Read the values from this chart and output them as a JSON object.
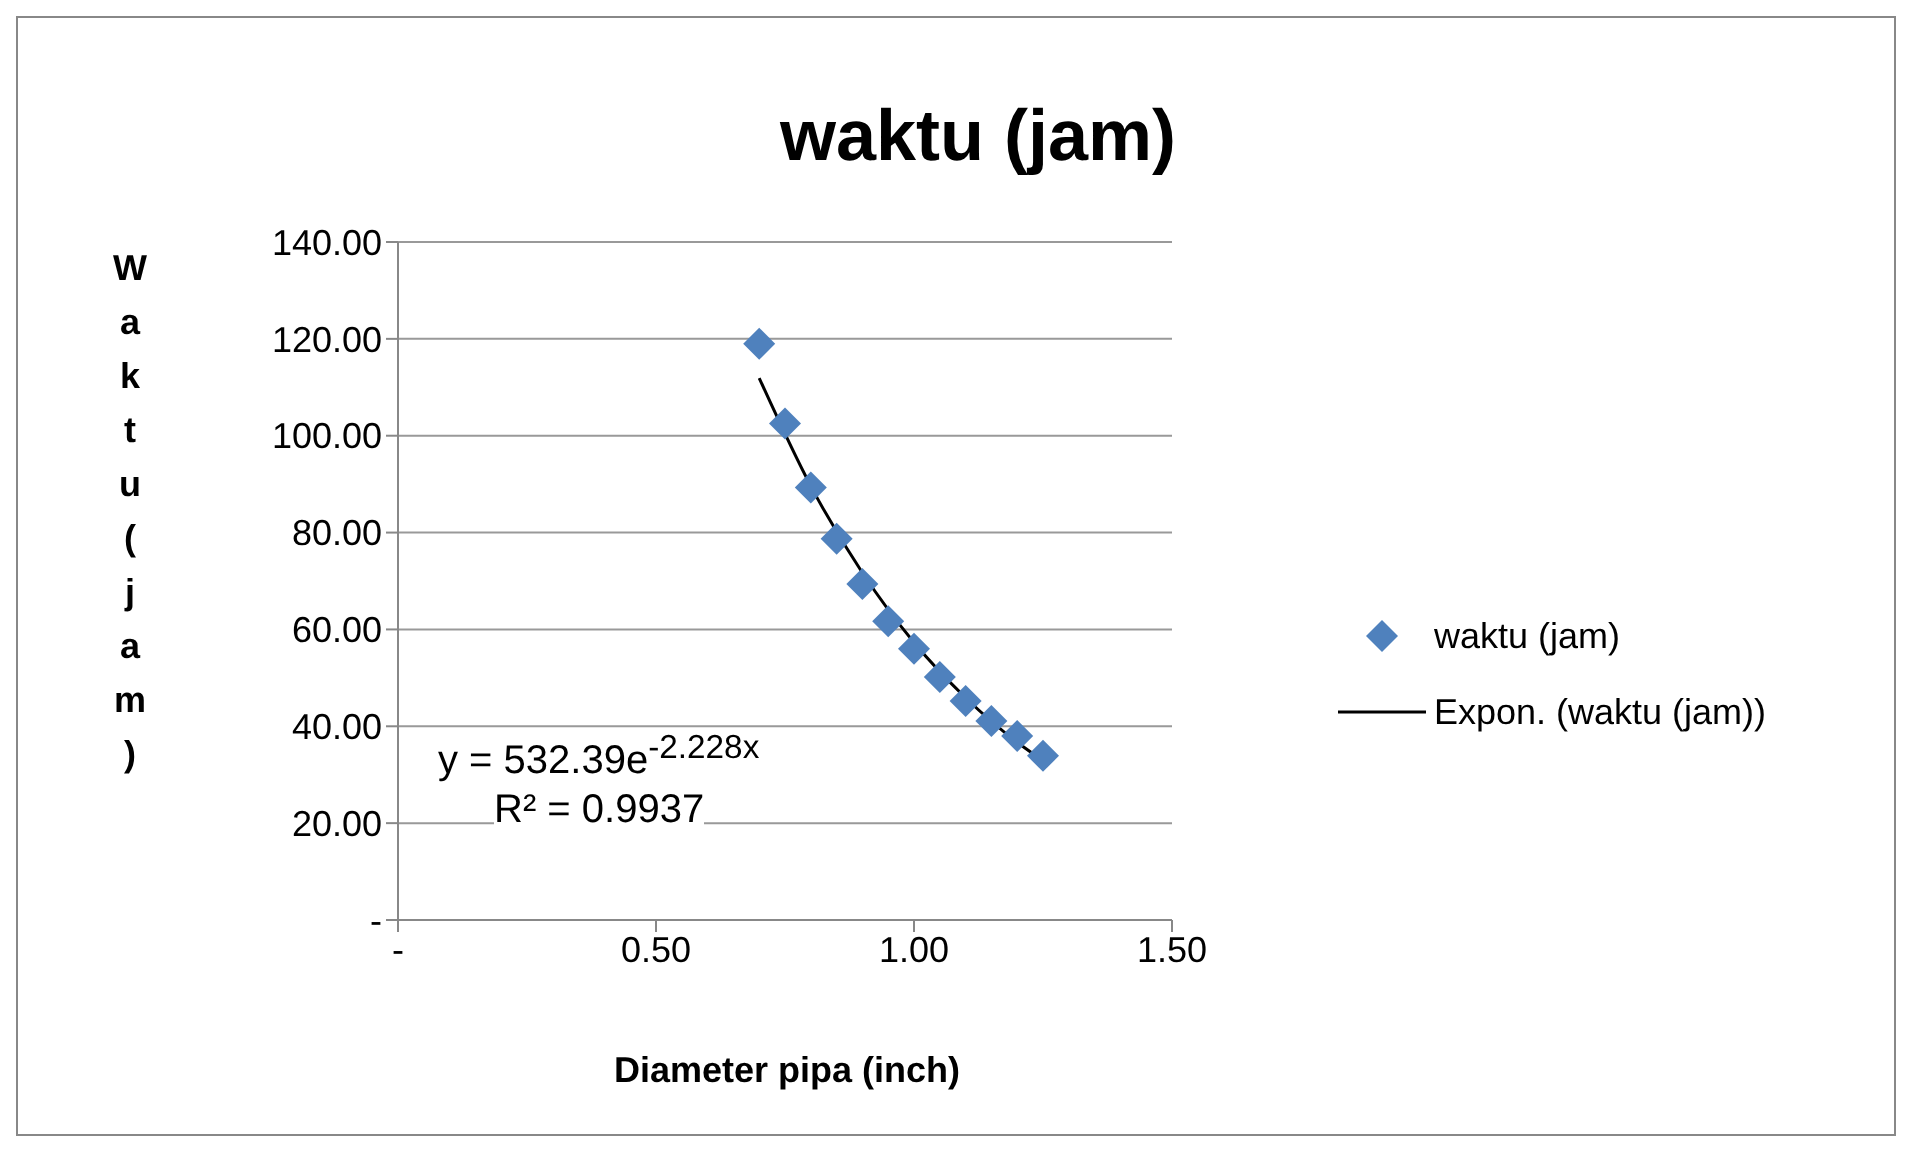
{
  "chart_data": {
    "type": "scatter",
    "title": "waktu (jam)",
    "xlabel": "Diameter pipa (inch)",
    "ylabel": "Waktu (jam)",
    "x": [
      0.7,
      0.75,
      0.8,
      0.85,
      0.9,
      0.95,
      1.0,
      1.05,
      1.1,
      1.15,
      1.2,
      1.25
    ],
    "series": [
      {
        "name": "waktu (jam)",
        "color": "#4f81bd",
        "marker": "diamond",
        "values": [
          119,
          102.5,
          89.3,
          78.7,
          69.4,
          61.7,
          56,
          50.2,
          45.2,
          41.1,
          38,
          33.9
        ]
      },
      {
        "name": "Expon. (waktu (jam))",
        "type": "line",
        "color": "#000000",
        "marker": "none",
        "x": [
          0.7,
          0.8,
          0.9,
          1.0,
          1.1,
          1.2,
          1.25
        ],
        "values": [
          111.9,
          89.6,
          71.7,
          57.3,
          45.9,
          36.7,
          32.9
        ]
      }
    ],
    "xlim": [
      0,
      1.5
    ],
    "xticks": [
      {
        "value": 0,
        "label": "-"
      },
      {
        "value": 0.5,
        "label": "0.50"
      },
      {
        "value": 1,
        "label": "1.00"
      },
      {
        "value": 1.5,
        "label": "1.50"
      }
    ],
    "ylim": [
      0,
      140
    ],
    "yticks": [
      {
        "value": 0,
        "label": "-"
      },
      {
        "value": 20,
        "label": "20.00"
      },
      {
        "value": 40,
        "label": "40.00"
      },
      {
        "value": 60,
        "label": "60.00"
      },
      {
        "value": 80,
        "label": "80.00"
      },
      {
        "value": 100,
        "label": "100.00"
      },
      {
        "value": 120,
        "label": "120.00"
      },
      {
        "value": 140,
        "label": "140.00"
      }
    ],
    "grid": "y",
    "legend": "right",
    "annotations": [
      "y = 532.39e$^{-2.228x}$",
      "R² = 0.9937"
    ]
  }
}
